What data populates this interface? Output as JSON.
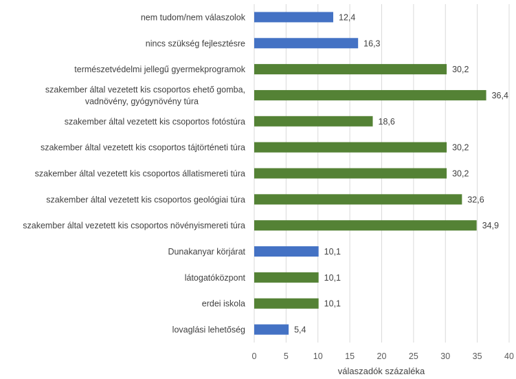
{
  "chart_data": {
    "type": "bar",
    "orientation": "horizontal",
    "categories": [
      [
        "nem tudom/nem válaszolok"
      ],
      [
        "nincs szükség fejlesztésre"
      ],
      [
        "természetvédelmi jellegű gyermekprogramok"
      ],
      [
        "szakember által vezetett kis csoportos ehető gomba,",
        "vadnövény, gyógynövény túra"
      ],
      [
        "szakember által vezetett kis csoportos fotóstúra"
      ],
      [
        "szakember által vezetett kis csoportos tájtörténeti túra"
      ],
      [
        "szakember által vezetett kis csoportos állatismereti túra"
      ],
      [
        "szakember által vezetett kis csoportos geológiai túra"
      ],
      [
        "szakember által vezetett kis csoportos növényismereti túra"
      ],
      [
        "Dunakanyar körjárat"
      ],
      [
        "látogatóközpont"
      ],
      [
        "erdei iskola"
      ],
      [
        "lovaglási lehetőség"
      ]
    ],
    "values": [
      12.4,
      16.3,
      30.2,
      36.4,
      18.6,
      30.2,
      30.2,
      32.6,
      34.9,
      10.1,
      10.1,
      10.1,
      5.4
    ],
    "value_labels": [
      "12,4",
      "16,3",
      "30,2",
      "36,4",
      "18,6",
      "30,2",
      "30,2",
      "32,6",
      "34,9",
      "10,1",
      "10,1",
      "10,1",
      "5,4"
    ],
    "bar_colors": [
      "#4472c4",
      "#4472c4",
      "#548235",
      "#548235",
      "#548235",
      "#548235",
      "#548235",
      "#548235",
      "#548235",
      "#4472c4",
      "#548235",
      "#548235",
      "#4472c4"
    ],
    "xlim": [
      0,
      40
    ],
    "xticks": [
      0,
      5,
      10,
      15,
      20,
      25,
      30,
      35,
      40
    ],
    "xlabel": "válaszadók százaléka",
    "ylabel": "",
    "title": "",
    "grid": "vertical",
    "legend": "none"
  }
}
